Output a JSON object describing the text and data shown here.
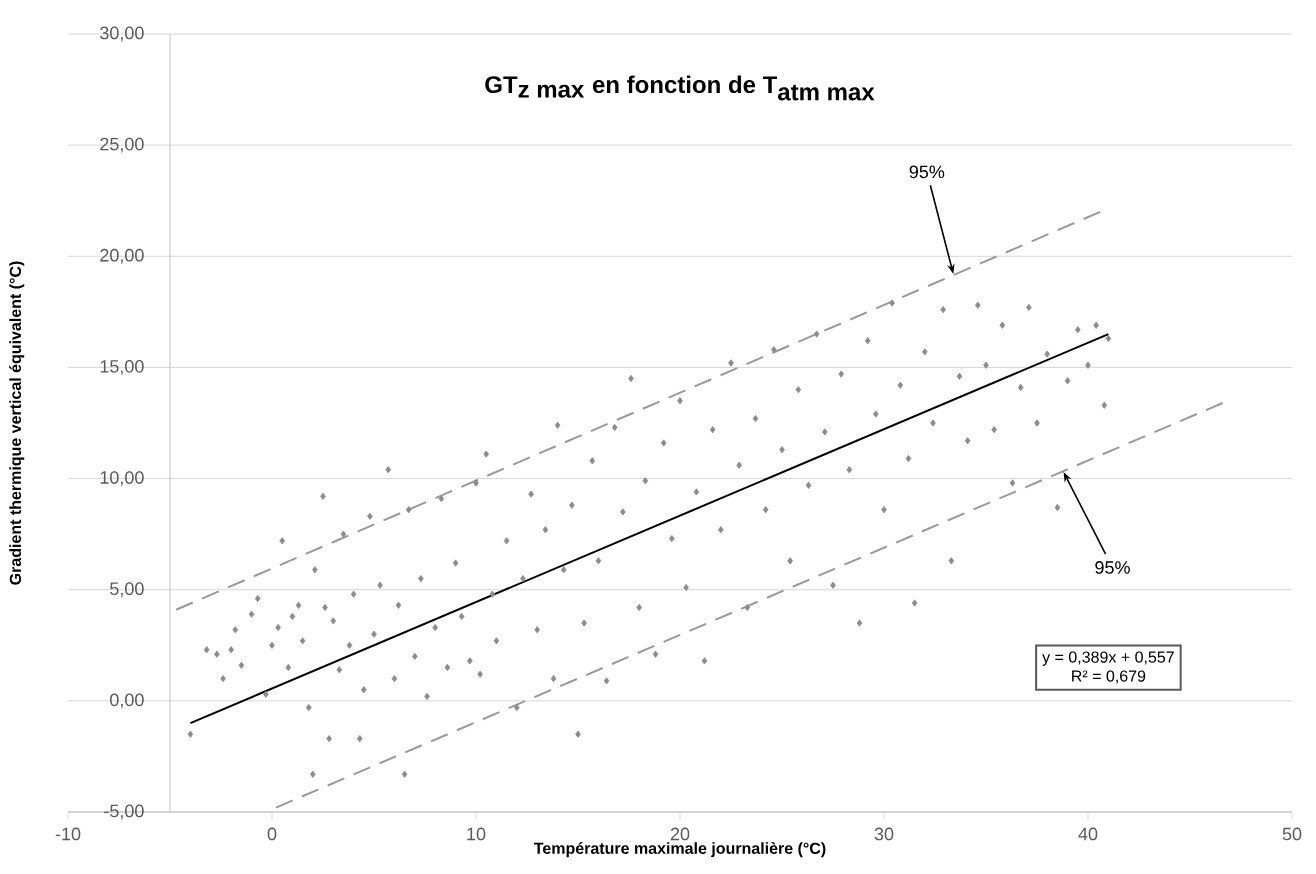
{
  "chart_data": {
    "type": "scatter",
    "title": "\\textbf{GT}_{\\textbf{z max}}\\textbf{ en fonction de T}_{\\textbf{atm max}}",
    "xlabel": "Température maximale journalière (°C)",
    "ylabel": "Gradient thermique vertical équivalent (°C)",
    "xlim": [
      -10,
      50
    ],
    "xticks": [
      -10,
      0,
      10,
      20,
      30,
      40,
      50
    ],
    "ylim": [
      -5,
      30
    ],
    "yticks": [
      {
        "value": -5,
        "label": "-5,00"
      },
      {
        "value": 0,
        "label": "0,00"
      },
      {
        "value": 5,
        "label": "5,00"
      },
      {
        "value": 10,
        "label": "10,00"
      },
      {
        "value": 15,
        "label": "15,00"
      },
      {
        "value": 20,
        "label": "20,00"
      },
      {
        "value": 25,
        "label": "25,00"
      },
      {
        "value": 30,
        "label": "30,00"
      }
    ],
    "grid": "y",
    "series": [
      {
        "marker": "diamond",
        "color": "#8c8c8c",
        "x": [
          -4,
          -3.2,
          -2.7,
          -2.4,
          -2,
          -1.8,
          -1.5,
          -1,
          -0.7,
          -0.3,
          0,
          0.3,
          0.5,
          0.8,
          1,
          1.3,
          1.5,
          1.8,
          2,
          2.1,
          2.5,
          2.6,
          2.8,
          3,
          3.3,
          3.5,
          3.8,
          4,
          4.3,
          4.5,
          4.8,
          5,
          5.3,
          5.7,
          6,
          6.2,
          6.5,
          6.7,
          7,
          7.3,
          7.6,
          8,
          8.3,
          8.6,
          9,
          9.3,
          9.7,
          10,
          10.2,
          10.5,
          10.8,
          11,
          11.5,
          12,
          12.3,
          12.7,
          13,
          13.4,
          13.8,
          14,
          14.3,
          14.7,
          15,
          15.3,
          15.7,
          16,
          16.4,
          16.8,
          17.2,
          17.6,
          18,
          18.3,
          18.8,
          19.2,
          19.6,
          20,
          20.3,
          20.8,
          21.2,
          21.6,
          22,
          22.5,
          22.9,
          23.3,
          23.7,
          24.2,
          24.6,
          25,
          25.4,
          25.8,
          26.3,
          26.7,
          27.1,
          27.5,
          27.9,
          28.3,
          28.8,
          29.2,
          29.6,
          30,
          30.4,
          30.8,
          31.2,
          31.5,
          32,
          32.4,
          32.9,
          33.3,
          33.7,
          34.1,
          34.6,
          35,
          35.4,
          35.8,
          36.3,
          36.7,
          37.1,
          37.5,
          38,
          38.5,
          39,
          39.5,
          40,
          40.4,
          40.8,
          41
        ],
        "values": [
          -1.5,
          2.3,
          2.1,
          1,
          2.3,
          3.2,
          1.6,
          3.9,
          4.6,
          0.3,
          2.5,
          3.3,
          7.2,
          1.5,
          3.8,
          4.3,
          2.7,
          -0.3,
          -3.3,
          5.9,
          9.2,
          4.2,
          -1.7,
          3.6,
          1.4,
          7.5,
          2.5,
          4.8,
          -1.7,
          0.5,
          8.3,
          3,
          5.2,
          10.4,
          1,
          4.3,
          -3.3,
          8.6,
          2,
          5.5,
          0.2,
          3.3,
          9.1,
          1.5,
          6.2,
          3.8,
          1.8,
          9.8,
          1.2,
          11.1,
          4.8,
          2.7,
          7.2,
          -0.3,
          5.5,
          9.3,
          3.2,
          7.7,
          1,
          12.4,
          5.9,
          8.8,
          -1.5,
          3.5,
          10.8,
          6.3,
          0.9,
          12.3,
          8.5,
          14.5,
          4.2,
          9.9,
          2.1,
          11.6,
          7.3,
          13.5,
          5.1,
          9.4,
          1.8,
          12.2,
          7.7,
          15.2,
          10.6,
          4.2,
          12.7,
          8.6,
          15.8,
          11.3,
          6.3,
          14,
          9.7,
          16.5,
          12.1,
          5.2,
          14.7,
          10.4,
          3.5,
          16.2,
          12.9,
          8.6,
          17.9,
          14.2,
          10.9,
          4.4,
          15.7,
          12.5,
          17.6,
          6.3,
          14.6,
          11.7,
          17.8,
          15.1,
          12.2,
          16.9,
          9.8,
          14.1,
          17.7,
          12.5,
          15.6,
          8.7,
          14.4,
          16.7,
          15.1,
          16.9,
          13.3,
          16.3
        ]
      },
      {
        "type": "line",
        "color": "#000000",
        "line_style": "solid",
        "x": [
          -4,
          41
        ],
        "values": [
          -1.0,
          16.5
        ]
      },
      {
        "type": "line",
        "color": "#999999",
        "line_style": "dashed",
        "x": [
          -4.7,
          40.6
        ],
        "values": [
          4.1,
          22.0
        ]
      },
      {
        "type": "line",
        "color": "#999999",
        "line_style": "dashed",
        "x": [
          0.2,
          46.6
        ],
        "values": [
          -4.8,
          13.4
        ]
      }
    ],
    "annotations": [
      {
        "text": "95%",
        "x": 33.4,
        "y": 19.2
      },
      {
        "text": "95%",
        "x": 38.8,
        "y": 10.3
      },
      "y = 0,389x + 0,557",
      "R² = 0,679"
    ]
  }
}
